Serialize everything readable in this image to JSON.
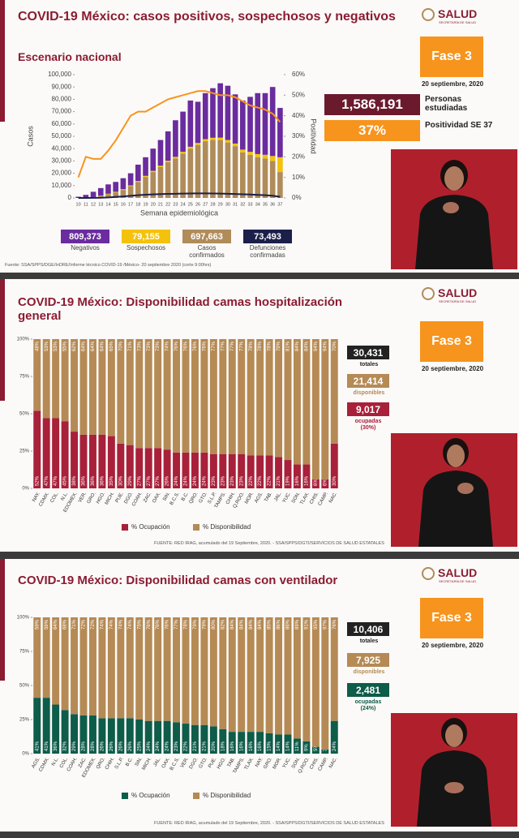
{
  "logo": {
    "name": "SALUD",
    "sub": "SECRETARÍA DE SALUD"
  },
  "phase": "Fase 3",
  "date": "20 septiembre, 2020",
  "chart_data": [
    {
      "type": "bar",
      "stacked": true,
      "title": "COVID-19 México: casos positivos, sospechosos y negativos",
      "subtitle": "Escenario nacional",
      "ylabel": "Casos",
      "y2label": "Positividad",
      "xlabel": "Semana epidemiológica",
      "categories": [
        "10",
        "11",
        "12",
        "13",
        "14",
        "15",
        "16",
        "17",
        "18",
        "19",
        "20",
        "21",
        "22",
        "23",
        "24",
        "25",
        "26",
        "27",
        "28",
        "29",
        "30",
        "31",
        "32",
        "33",
        "34",
        "35",
        "36",
        "37"
      ],
      "series": [
        {
          "name": "Negativos",
          "color": "#6a2c9e",
          "total": "809,373",
          "values": [
            1000,
            2300,
            4300,
            6200,
            7600,
            8000,
            8900,
            9800,
            13200,
            15100,
            18000,
            20900,
            23800,
            29700,
            32600,
            37500,
            33400,
            37300,
            40200,
            44100,
            44000,
            39900,
            39800,
            44600,
            49400,
            50000,
            56000,
            40000
          ]
        },
        {
          "name": "Sospechosos",
          "color": "#f4c20d",
          "total": "79,155",
          "values": [
            0,
            100,
            200,
            300,
            400,
            500,
            600,
            700,
            800,
            900,
            1000,
            1100,
            1200,
            1300,
            1400,
            1500,
            1600,
            1700,
            1800,
            1900,
            2000,
            2100,
            2200,
            2400,
            2600,
            3000,
            4000,
            12000
          ]
        },
        {
          "name": "Casos confirmados",
          "color": "#b08c5a",
          "total": "697,663",
          "values": [
            0,
            100,
            500,
            1500,
            3000,
            4500,
            6500,
            9500,
            13000,
            17000,
            21000,
            25000,
            29000,
            32000,
            36000,
            40000,
            43000,
            46000,
            47000,
            47000,
            45000,
            42000,
            37000,
            35000,
            33000,
            32000,
            30000,
            21000
          ]
        },
        {
          "name": "Defunciones confirmadas",
          "type": "line",
          "color": "#1b1f4a",
          "total": "73,493",
          "values": [
            0,
            10,
            50,
            150,
            400,
            800,
            1200,
            1700,
            2200,
            2600,
            2900,
            3100,
            3300,
            3400,
            3500,
            3600,
            3700,
            3700,
            3600,
            3500,
            3400,
            3200,
            3000,
            2800,
            2500,
            2200,
            1800,
            900
          ]
        },
        {
          "type": "line",
          "axis": "y2",
          "color": "#f7941d",
          "values": [
            10,
            20,
            19,
            19,
            23,
            28,
            34,
            40,
            42,
            42,
            44,
            46,
            48,
            49,
            50,
            51,
            52,
            52,
            51,
            50,
            50,
            49,
            47,
            45,
            44,
            43,
            41,
            37
          ]
        }
      ],
      "ylim": [
        0,
        100000
      ],
      "yticks": [
        0,
        {
          "value": 10000,
          "label": "10,000"
        },
        {
          "value": 20000,
          "label": "20,000"
        },
        {
          "value": 30000,
          "label": "30,000"
        },
        {
          "value": 40000,
          "label": "40,000"
        },
        {
          "value": 50000,
          "label": "50,000"
        },
        {
          "value": 60000,
          "label": "60,000"
        },
        {
          "value": 70000,
          "label": "70,000"
        },
        {
          "value": 80000,
          "label": "80,000"
        },
        {
          "value": 90000,
          "label": "90,000"
        },
        {
          "value": 100000,
          "label": "100,000"
        }
      ],
      "y2lim": [
        0,
        60
      ],
      "y2ticks": [
        {
          "value": 0,
          "label": "0%"
        },
        {
          "value": 10,
          "label": "10%"
        },
        {
          "value": 20,
          "label": "20%"
        },
        {
          "value": 30,
          "label": "30%"
        },
        {
          "value": 40,
          "label": "40%"
        },
        {
          "value": 50,
          "label": "50%"
        },
        {
          "value": 60,
          "label": "60%"
        }
      ],
      "grid": false,
      "people": {
        "value": "1,586,191",
        "label": "Personas estudiadas"
      },
      "positivity": {
        "value": "37%",
        "label": "Positividad SE 37"
      },
      "source": "Fuente: SSA/SPPS/DGE/InDRE/Informe técnico.COVID-19 /México- 20 septiembre 2020 (corte 9:00hrs)"
    },
    {
      "type": "bar",
      "stacked": true,
      "title": "COVID-19 México: Disponibilidad camas hospitalización general",
      "categories": [
        "NAY.",
        "CDMX.",
        "COL.",
        "N.L.",
        "EDOMEX.",
        "VER.",
        "GRO.",
        "HGO.",
        "MICH.",
        "PUE.",
        "DGO.",
        "COAH.",
        "ZAC.",
        "OAX.",
        "SIN.",
        "B.C.S.",
        "B.C.",
        "QRO.",
        "GTO.",
        "S.L.P.",
        "TAMPS.",
        "CHIH.",
        "Q.ROO.",
        "MOR.",
        "AGS.",
        "TAB.",
        "JAL.",
        "YUC.",
        "SON.",
        "TLAX.",
        "CHIS.",
        "CAMP.",
        "NAC."
      ],
      "series": [
        {
          "name": "% Ocupación",
          "color": "#a8203a",
          "values": [
            52,
            47,
            47,
            45,
            38,
            36,
            36,
            36,
            35,
            30,
            29,
            27,
            27,
            27,
            26,
            24,
            24,
            24,
            24,
            23,
            23,
            23,
            23,
            22,
            22,
            22,
            21,
            19,
            16,
            16,
            6,
            6,
            30
          ],
          "value_labels": [
            "52%",
            "47%",
            "47%",
            "45%",
            "38%",
            "36%",
            "36%",
            "36%",
            "35%",
            "30%",
            "29%",
            "27%",
            "27%",
            "27%",
            "26%",
            "24%",
            "24%",
            "24%",
            "24%",
            "23%",
            "23%",
            "23%",
            "23%",
            "22%",
            "22%",
            "22%",
            "21%",
            "19%",
            "16%",
            "16%",
            "6%",
            "6%",
            "30%"
          ]
        },
        {
          "name": "% Disponibilidad",
          "color": "#b58a55",
          "values": [
            48,
            53,
            53,
            55,
            62,
            64,
            64,
            64,
            65,
            70,
            71,
            73,
            73,
            73,
            74,
            76,
            76,
            76,
            76,
            77,
            77,
            77,
            77,
            78,
            78,
            78,
            79,
            81,
            84,
            84,
            94,
            94,
            70
          ],
          "value_labels": [
            "48%",
            "53%",
            "53%",
            "55%",
            "62%",
            "64%",
            "64%",
            "64%",
            "65%",
            "70%",
            "71%",
            "73%",
            "73%",
            "73%",
            "74%",
            "76%",
            "76%",
            "76%",
            "76%",
            "77%",
            "77%",
            "77%",
            "77%",
            "78%",
            "78%",
            "78%",
            "79%",
            "81%",
            "84%",
            "84%",
            "94%",
            "94%",
            "70%"
          ]
        }
      ],
      "ylim": [
        0,
        100
      ],
      "yticks": [
        {
          "value": 0,
          "label": "0%"
        },
        {
          "value": 25,
          "label": "25%"
        },
        {
          "value": 50,
          "label": "50%"
        },
        {
          "value": 75,
          "label": "75%"
        },
        {
          "value": 100,
          "label": "100%"
        }
      ],
      "grid": false,
      "stats": [
        {
          "value": "30,431",
          "label": "totales"
        },
        {
          "value": "21,414",
          "label": "disponibles"
        },
        {
          "value": "9,017",
          "label": "ocupadas (30%)"
        }
      ],
      "source": "FUENTE: RED IRAG, acumulado del 19 Septiembre, 2020. - SSA/SPPS/DGTI/SERVICIOS DE SALUD ESTATALES"
    },
    {
      "type": "bar",
      "stacked": true,
      "title": "COVID-19 México: Disponibilidad camas con ventilador",
      "categories": [
        "AGS.",
        "CDMX.",
        "N.L.",
        "COL.",
        "COAH.",
        "ZAC.",
        "EDOMEX.",
        "QRO.",
        "CHIH.",
        "S.L.P.",
        "B.C.",
        "SIN.",
        "MICH.",
        "JAL.",
        "OAX.",
        "B.C.S.",
        "VER.",
        "DGO.",
        "GTO.",
        "PUE.",
        "HGO.",
        "TAB.",
        "TAMPS.",
        "TLAX.",
        "NAY.",
        "GRO.",
        "MOR.",
        "YUC.",
        "SON.",
        "Q.ROO.",
        "CHIS.",
        "CAMP.",
        "NAC."
      ],
      "series": [
        {
          "name": "% Ocupación",
          "color": "#0e5c4a",
          "values": [
            41,
            41,
            36,
            32,
            29,
            28,
            28,
            26,
            26,
            26,
            26,
            25,
            24,
            24,
            24,
            23,
            22,
            21,
            21,
            20,
            18,
            16,
            16,
            16,
            16,
            15,
            14,
            14,
            11,
            9,
            5,
            3,
            24
          ],
          "value_labels": [
            "41%",
            "41%",
            "36%",
            "32%",
            "29%",
            "28%",
            "28%",
            "26%",
            "26%",
            "26%",
            "26%",
            "25%",
            "24%",
            "24%",
            "24%",
            "23%",
            "22%",
            "21%",
            "21%",
            "20%",
            "18%",
            "16%",
            "16%",
            "16%",
            "16%",
            "15%",
            "14%",
            "14%",
            "11%",
            "9%",
            "5%",
            "3%",
            "24%"
          ]
        },
        {
          "name": "% Disponibilidad",
          "color": "#b58a55",
          "values": [
            59,
            59,
            64,
            68,
            71,
            72,
            72,
            74,
            74,
            74,
            74,
            75,
            76,
            76,
            76,
            77,
            78,
            79,
            79,
            80,
            82,
            84,
            84,
            84,
            84,
            85,
            86,
            86,
            89,
            91,
            95,
            97,
            76
          ],
          "value_labels": [
            "59%",
            "59%",
            "64%",
            "68%",
            "71%",
            "72%",
            "72%",
            "74%",
            "74%",
            "74%",
            "74%",
            "75%",
            "76%",
            "76%",
            "76%",
            "77%",
            "78%",
            "79%",
            "79%",
            "80%",
            "82%",
            "84%",
            "84%",
            "84%",
            "84%",
            "85%",
            "86%",
            "86%",
            "89%",
            "91%",
            "95%",
            "97%",
            "76%"
          ]
        }
      ],
      "ylim": [
        0,
        100
      ],
      "yticks": [
        {
          "value": 0,
          "label": "0%"
        },
        {
          "value": 25,
          "label": "25%"
        },
        {
          "value": 50,
          "label": "50%"
        },
        {
          "value": 75,
          "label": "75%"
        },
        {
          "value": 100,
          "label": "100%"
        }
      ],
      "grid": false,
      "stats": [
        {
          "value": "10,406",
          "label": "totales"
        },
        {
          "value": "7,925",
          "label": "disponibles"
        },
        {
          "value": "2,481",
          "label": "ocupadas (24%)"
        }
      ],
      "source": "FUENTE: RED IRAG, acumulado del 19 Septiembre, 2020. - SSA/SPPS/DGTI/SERVICIOS DE SALUD ESTATALES"
    }
  ]
}
